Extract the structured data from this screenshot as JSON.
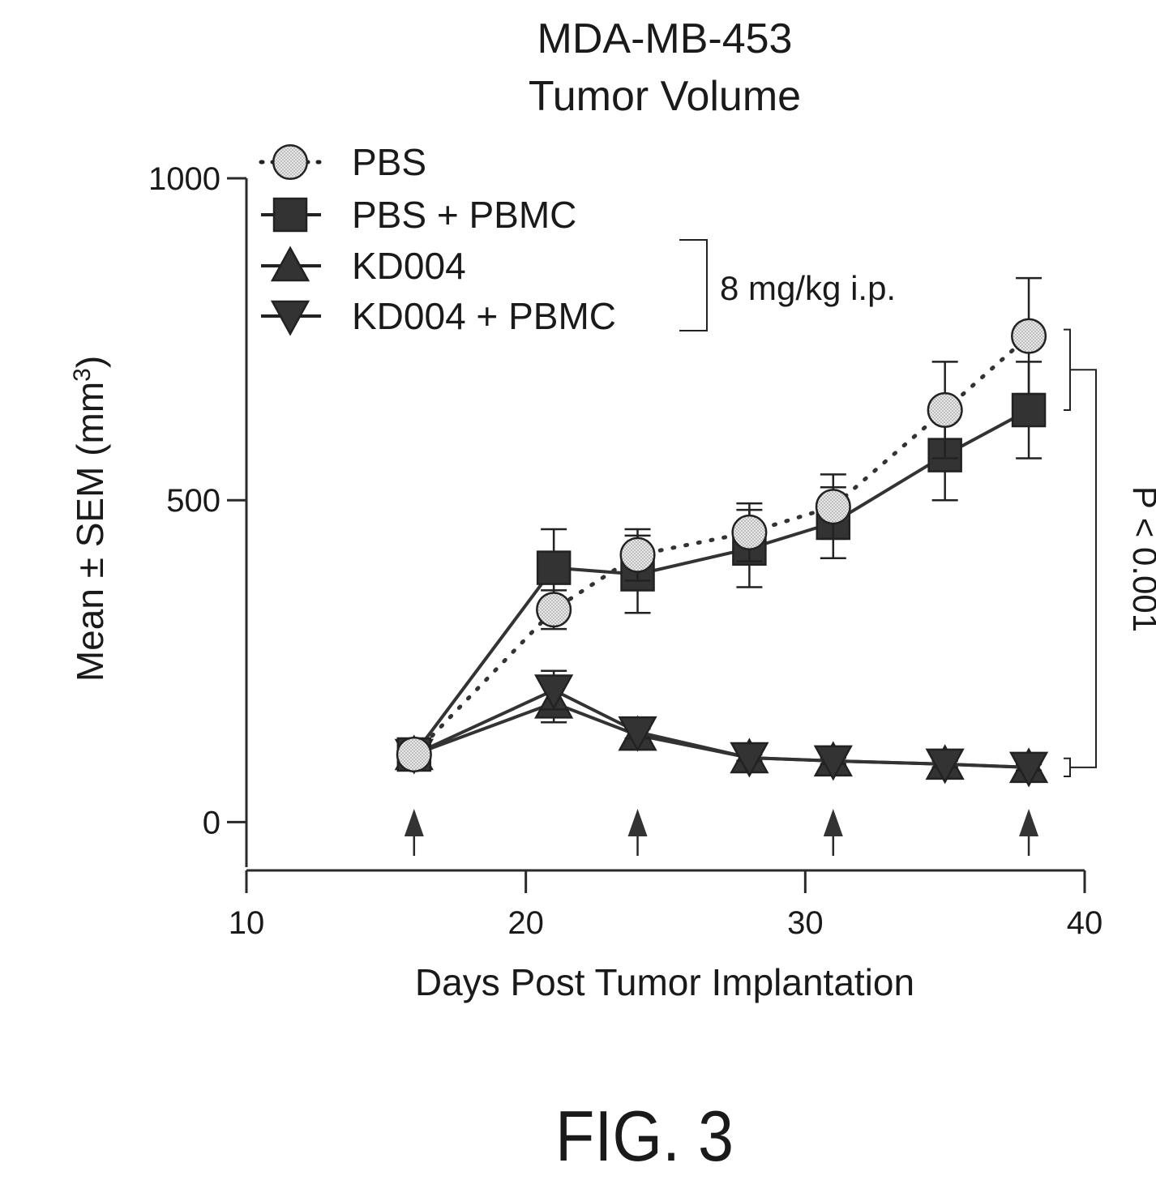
{
  "chart_data": {
    "type": "line",
    "title": "MDA-MB-453",
    "subtitle": "Tumor Volume",
    "xlabel": "Days Post Tumor Implantation",
    "ylabel": "Mean ± SEM (mm3)",
    "xlim": [
      10,
      40
    ],
    "ylim": [
      -70,
      1000
    ],
    "x_ticks": [
      10,
      20,
      30,
      40
    ],
    "y_ticks": [
      0,
      500,
      1000
    ],
    "grid": false,
    "legend_position": "top-left",
    "series": [
      {
        "name": "PBS",
        "marker": "circle",
        "line_style": "dotted",
        "color": "#333333",
        "marker_fill": "#d9d9d9",
        "x": [
          16,
          21,
          24,
          28,
          31,
          35,
          38
        ],
        "y": [
          105,
          330,
          415,
          450,
          490,
          640,
          755
        ],
        "err": [
          0,
          30,
          40,
          45,
          50,
          75,
          90
        ]
      },
      {
        "name": "PBS + PBMC",
        "marker": "square",
        "line_style": "solid",
        "color": "#333333",
        "marker_fill": "#333333",
        "x": [
          16,
          21,
          24,
          28,
          31,
          35,
          38
        ],
        "y": [
          105,
          395,
          385,
          425,
          465,
          570,
          640
        ],
        "err": [
          0,
          60,
          60,
          60,
          55,
          70,
          75
        ]
      },
      {
        "name": "KD004",
        "marker": "triangle-up",
        "line_style": "solid",
        "color": "#333333",
        "marker_fill": "#333333",
        "x": [
          16,
          21,
          24,
          28,
          31,
          35,
          38
        ],
        "y": [
          105,
          185,
          135,
          100,
          95,
          90,
          85
        ],
        "err": [
          0,
          30,
          10,
          5,
          5,
          5,
          5
        ]
      },
      {
        "name": "KD004 + PBMC",
        "marker": "triangle-down",
        "line_style": "solid",
        "color": "#333333",
        "marker_fill": "#333333",
        "x": [
          16,
          21,
          24,
          28,
          31,
          35,
          38
        ],
        "y": [
          105,
          205,
          140,
          100,
          95,
          90,
          85
        ],
        "err": [
          0,
          30,
          10,
          5,
          5,
          5,
          5
        ]
      }
    ],
    "dosing_days": [
      16,
      24,
      31,
      38
    ],
    "annotations": {
      "dose": "8 mg/kg i.p.",
      "pvalue": "P < 0.001"
    }
  },
  "figure_label": "FIG. 3"
}
